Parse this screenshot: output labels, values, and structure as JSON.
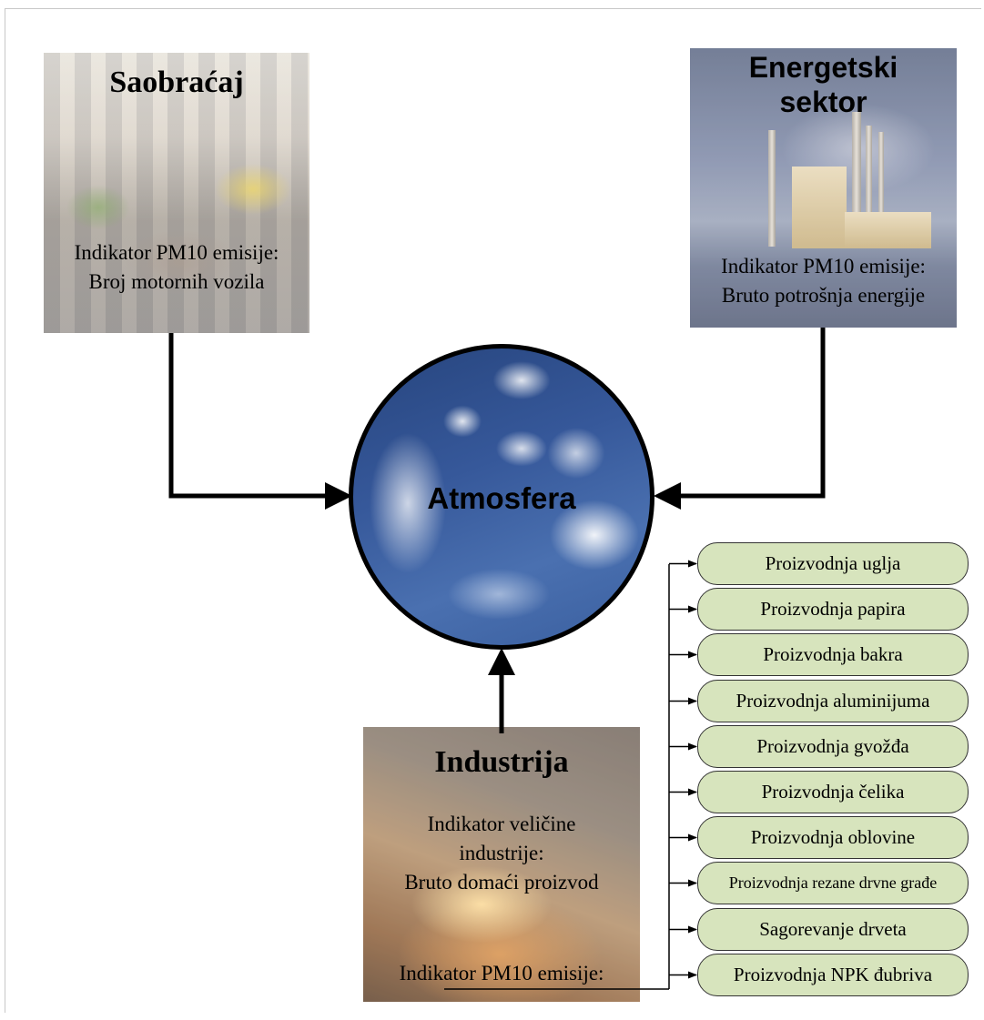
{
  "saobracaj": {
    "title": "Saobraćaj",
    "indicator_label": "Indikator PM10 emisije:",
    "indicator_value": "Broj motornih vozila"
  },
  "energetski": {
    "title_line1": "Energetski",
    "title_line2": "sektor",
    "indicator_label": "Indikator PM10 emisije:",
    "indicator_value": "Bruto potrošnja energije"
  },
  "atmosfera": {
    "label": "Atmosfera"
  },
  "industrija": {
    "title": "Industrija",
    "size_indicator_line1": "Indikator veličine",
    "size_indicator_line2": "industrije:",
    "size_indicator_value": "Bruto domaći proizvod",
    "pm10_label": "Indikator PM10 emisije:"
  },
  "processes": [
    "Proizvodnja uglja",
    "Proizvodnja papira",
    "Proizvodnja bakra",
    "Proizvodnja aluminijuma",
    "Proizvodnja gvožđa",
    "Proizvodnja čelika",
    "Proizvodnja oblovine",
    "Proizvodnja rezane drvne  građe",
    "Sagorevanje drveta",
    "Proizvodnja NPK đubriva"
  ],
  "colors": {
    "pill_fill": "#d7e4bd",
    "arrow": "#000000",
    "circle_border": "#000000"
  }
}
